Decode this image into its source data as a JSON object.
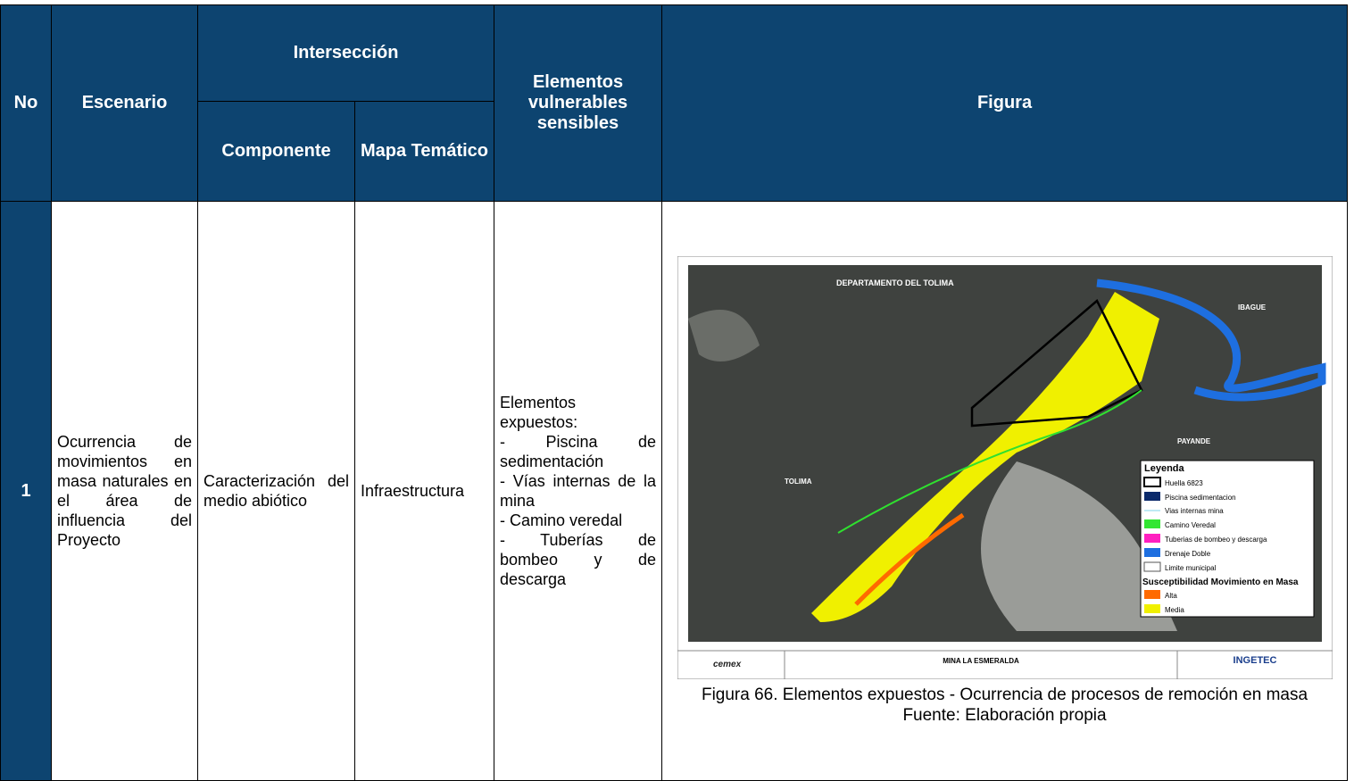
{
  "header": {
    "no": "No",
    "escenario": "Escenario",
    "interseccion": "Intersección",
    "componente": "Componente",
    "mapa_tematico": "Mapa Temático",
    "elementos": "Elementos vulnerables sensibles",
    "figura": "Figura"
  },
  "rows": [
    {
      "no": "1",
      "escenario": "Ocurrencia de movimientos en masa naturales en el área de influencia del Proyecto",
      "componente": "Caracterización del medio abiótico",
      "mapa_tematico": "Infraestructura",
      "elementos": [
        "Elementos expuestos:",
        "- Piscina de sedimentación",
        "- Vías internas de la mina",
        "- Camino veredal",
        "- Tuberías de bombeo y de descarga"
      ]
    }
  ],
  "figure": {
    "map": {
      "labels": [
        "DEPARTAMENTO DEL TOLIMA",
        "IBAGUE",
        "TOLIMA",
        "PAYANDE"
      ],
      "legend_title": "Leyenda",
      "legend": [
        "Huella 6823",
        "Piscina sedimentacion",
        "Vias internas mina",
        "Camino Veredal",
        "Tuberias de bombeo y descarga",
        "Drenaje Doble",
        "Limite municipal"
      ],
      "legend_subtitle": "Susceptibilidad Movimiento en Masa",
      "susceptibility": [
        "Alta",
        "Media"
      ],
      "project": "MINA LA ESMERALDA",
      "client": "cemex",
      "consultant": "INGETEC"
    },
    "caption": "Figura 66. Elementos expuestos - Ocurrencia de procesos de remoción en masa",
    "source": "Fuente: Elaboración propia"
  }
}
